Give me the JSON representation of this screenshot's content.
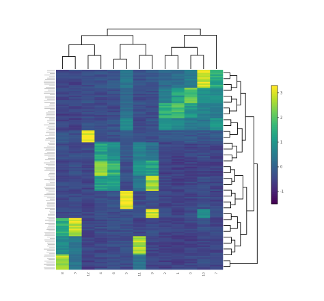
{
  "chart_data": {
    "type": "heatmap",
    "title": "",
    "xlabel": "",
    "ylabel": "",
    "colormap": "viridis",
    "colorbar": {
      "vmin": -1.5,
      "vmax": 3.3,
      "ticks": [
        -1,
        0,
        1,
        2,
        3
      ],
      "tick_labels": [
        "-1",
        "0",
        "1",
        "2",
        "3"
      ]
    },
    "column_labels": [
      "8",
      "3",
      "12",
      "4",
      "6",
      "5",
      "11",
      "9",
      "2",
      "1",
      "0",
      "10",
      "7"
    ],
    "row_count": 132,
    "row_tree_leaves": 34,
    "grid_lines": false,
    "clusters": [
      {
        "rows": [
          0,
          12
        ],
        "values": [
          -0.4,
          -0.5,
          -0.4,
          -0.3,
          -0.2,
          0.4,
          -0.3,
          -0.2,
          0.1,
          0.2,
          0.5,
          3.0,
          1.4
        ]
      },
      {
        "rows": [
          12,
          22
        ],
        "values": [
          -0.5,
          -0.5,
          -0.3,
          -0.4,
          -0.3,
          0.1,
          -0.4,
          -0.3,
          0.5,
          1.2,
          2.1,
          0.9,
          0.8
        ]
      },
      {
        "rows": [
          22,
          32
        ],
        "values": [
          -0.6,
          -0.5,
          -0.4,
          -0.5,
          -0.4,
          0.2,
          -0.3,
          -0.4,
          1.6,
          1.8,
          1.1,
          0.6,
          0.4
        ]
      },
      {
        "rows": [
          32,
          40
        ],
        "values": [
          -0.5,
          -0.6,
          -0.3,
          -0.4,
          -0.3,
          0.8,
          -0.4,
          -0.3,
          1.0,
          0.7,
          0.5,
          0.4,
          1.0
        ]
      },
      {
        "rows": [
          40,
          48
        ],
        "values": [
          -0.3,
          -0.3,
          3.2,
          -0.3,
          -0.3,
          -0.2,
          -0.3,
          -0.3,
          -0.2,
          -0.2,
          -0.2,
          -0.2,
          -0.2
        ]
      },
      {
        "rows": [
          48,
          60
        ],
        "values": [
          -0.4,
          -0.4,
          -0.4,
          1.2,
          0.9,
          -0.2,
          0.6,
          0.3,
          -0.5,
          -0.6,
          -0.5,
          -0.4,
          -0.5
        ]
      },
      {
        "rows": [
          60,
          70
        ],
        "values": [
          -0.5,
          -0.4,
          -0.5,
          2.5,
          1.6,
          -0.3,
          1.0,
          1.3,
          -0.6,
          -0.6,
          -0.6,
          -0.5,
          -0.6
        ]
      },
      {
        "rows": [
          70,
          80
        ],
        "values": [
          -0.4,
          -0.5,
          -0.5,
          1.2,
          1.1,
          -0.4,
          0.4,
          2.6,
          -0.5,
          -0.6,
          -0.5,
          -0.4,
          -0.5
        ]
      },
      {
        "rows": [
          80,
          92
        ],
        "values": [
          -0.5,
          -0.4,
          -0.5,
          -0.4,
          -0.3,
          3.1,
          -0.4,
          -0.4,
          -0.5,
          -0.6,
          -0.5,
          -0.4,
          -0.5
        ]
      },
      {
        "rows": [
          92,
          98
        ],
        "values": [
          -0.4,
          -0.4,
          -0.5,
          -0.4,
          -0.4,
          -0.3,
          -0.4,
          3.0,
          -0.4,
          -0.5,
          -0.4,
          0.9,
          -0.4
        ]
      },
      {
        "rows": [
          98,
          110
        ],
        "values": [
          1.5,
          2.9,
          -0.5,
          -0.4,
          -0.4,
          -0.3,
          -0.5,
          -0.4,
          -0.5,
          -0.6,
          -0.5,
          -0.4,
          -0.5
        ]
      },
      {
        "rows": [
          110,
          122
        ],
        "values": [
          0.8,
          0.4,
          -0.5,
          -0.5,
          -0.4,
          -0.4,
          2.7,
          -0.5,
          -0.6,
          -0.6,
          -0.6,
          -0.5,
          -0.5
        ]
      },
      {
        "rows": [
          122,
          132
        ],
        "values": [
          2.6,
          0.3,
          -0.6,
          -0.5,
          -0.4,
          -0.4,
          0.3,
          -0.5,
          -0.6,
          -0.6,
          -0.5,
          -0.4,
          -0.5
        ]
      }
    ]
  }
}
